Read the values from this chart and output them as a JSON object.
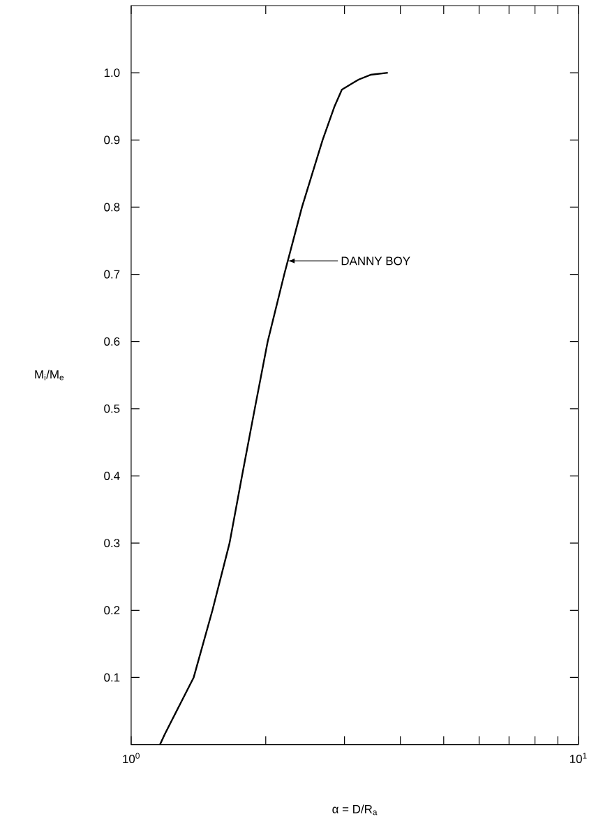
{
  "chart_data": {
    "type": "line",
    "xlabel": "α = D/R$_{a}$",
    "ylabel": "M$_{i}$/M$_{e}$",
    "log": "x",
    "xlim": [
      1,
      10
    ],
    "ylim": [
      0,
      1.1
    ],
    "xticks": [
      {
        "value": 1,
        "label": "10$^{0}$"
      },
      {
        "value": 2,
        "label": null
      },
      {
        "value": 3,
        "label": null
      },
      {
        "value": 4,
        "label": null
      },
      {
        "value": 5,
        "label": null
      },
      {
        "value": 6,
        "label": null
      },
      {
        "value": 7,
        "label": null
      },
      {
        "value": 8,
        "label": null
      },
      {
        "value": 9,
        "label": null
      },
      {
        "value": 10,
        "label": "10$^{1}$"
      }
    ],
    "yticks": [
      0.1,
      0.2,
      0.3,
      0.4,
      0.5,
      0.6,
      0.7,
      0.8,
      0.9,
      {
        "value": 1.0,
        "label": "1.0"
      }
    ],
    "series": [
      {
        "color": "#000000",
        "line_style": "solid",
        "x": [
          1.16,
          1.19,
          1.38,
          1.52,
          1.66,
          1.77,
          1.89,
          2.02,
          2.2,
          2.41,
          2.68,
          2.85,
          2.96,
          3.23,
          3.43,
          3.75
        ],
        "values": [
          0,
          0.016,
          0.1,
          0.2,
          0.3,
          0.4,
          0.5,
          0.6,
          0.7,
          0.8,
          0.9,
          0.95,
          0.975,
          0.99,
          0.997,
          1.0
        ]
      }
    ],
    "annotations": [
      "DANNY BOY"
    ]
  }
}
